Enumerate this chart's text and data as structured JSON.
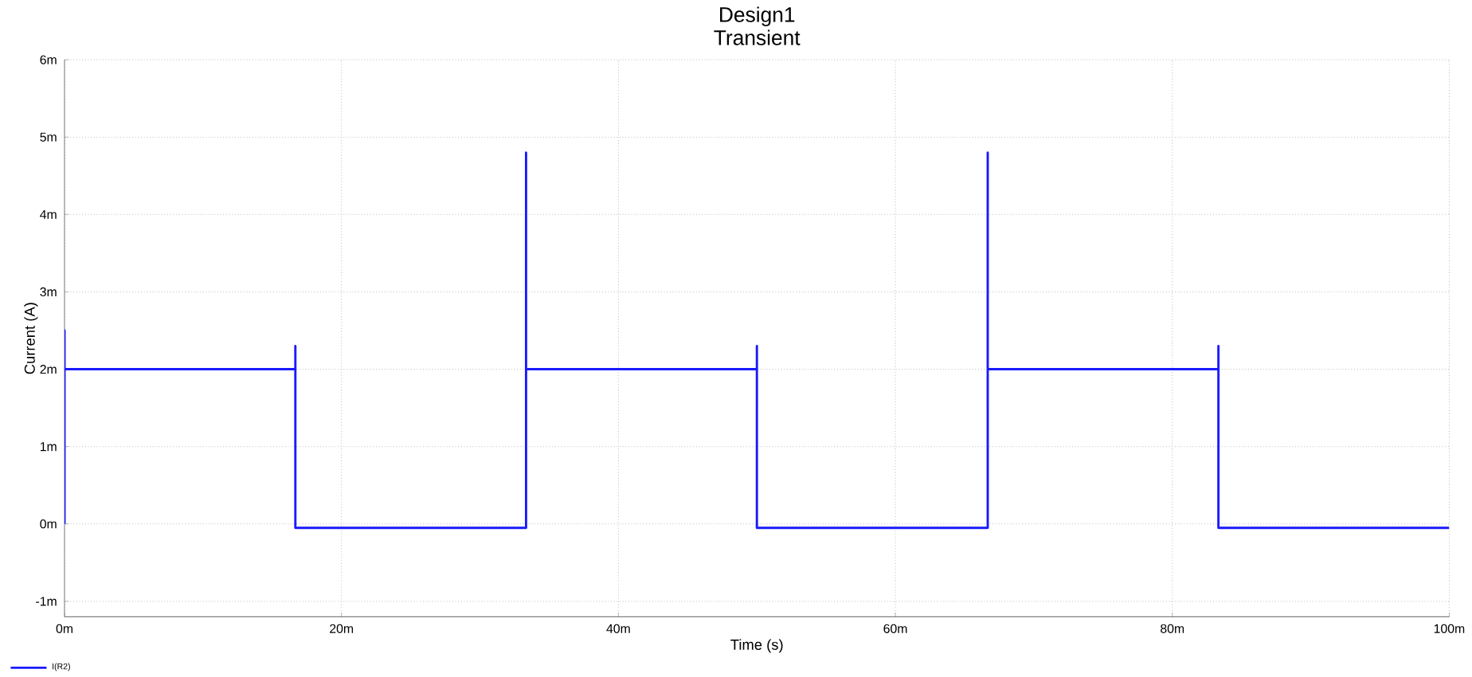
{
  "chart_data": {
    "type": "line",
    "title": "Design1",
    "subtitle": "Transient",
    "xlabel": "Time (s)",
    "ylabel": "Current (A)",
    "series": [
      {
        "name": "I(R2)",
        "color": "#1a1aff",
        "x": [
          0,
          0,
          0,
          16.67,
          16.67,
          16.67,
          33.33,
          33.33,
          33.33,
          50,
          50,
          50,
          66.67,
          66.67,
          66.67,
          83.33,
          83.33,
          83.33,
          100
        ],
        "values": [
          0,
          2.5,
          2,
          2,
          2.3,
          -0.05,
          -0.05,
          4.8,
          2,
          2,
          2.3,
          -0.05,
          -0.05,
          4.8,
          2,
          2,
          2.3,
          -0.05,
          -0.05
        ]
      }
    ],
    "xlim": [
      0,
      100
    ],
    "ylim": [
      -1.2,
      6
    ],
    "xticks": [
      {
        "value": 0,
        "label": "0m"
      },
      {
        "value": 20,
        "label": "20m"
      },
      {
        "value": 40,
        "label": "40m"
      },
      {
        "value": 60,
        "label": "60m"
      },
      {
        "value": 80,
        "label": "80m"
      },
      {
        "value": 100,
        "label": "100m"
      }
    ],
    "yticks": [
      {
        "value": -1,
        "label": "-1m"
      },
      {
        "value": 0,
        "label": "0m"
      },
      {
        "value": 1,
        "label": "1m"
      },
      {
        "value": 2,
        "label": "2m"
      },
      {
        "value": 3,
        "label": "3m"
      },
      {
        "value": 4,
        "label": "4m"
      },
      {
        "value": 5,
        "label": "5m"
      },
      {
        "value": 6,
        "label": "6m"
      }
    ],
    "grid": true,
    "legend": "bottom left",
    "marker": "none",
    "line_style": "solid"
  }
}
